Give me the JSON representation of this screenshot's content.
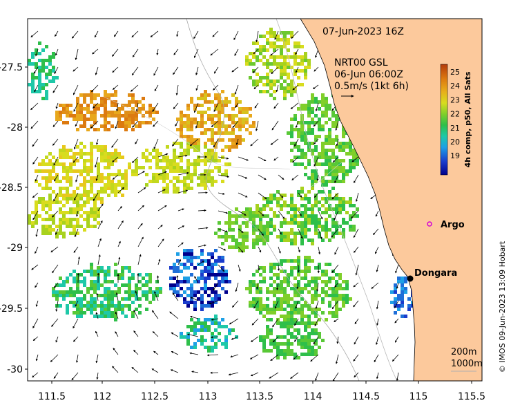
{
  "map": {
    "date_label": "07-Jun-2023 16Z",
    "current_source": {
      "line1": "NRT00 GSL",
      "line2": "06-Jun 06:00Z",
      "line3": "0.5m/s (1kt 6h)"
    },
    "x_ticks": [
      "111.5",
      "112",
      "112.5",
      "113",
      "113.5",
      "114",
      "114.5",
      "115",
      "115.5"
    ],
    "y_ticks": [
      "-27.5",
      "-28",
      "-28.5",
      "-29",
      "-29.5",
      "-30"
    ],
    "colorbar": {
      "title": "4h comp, p50, All Sats",
      "labels": [
        "25",
        "24",
        "23",
        "22",
        "21",
        "20",
        "19"
      ]
    },
    "places": [
      {
        "name": "Argo"
      },
      {
        "name": "Dongara"
      }
    ],
    "isobaths": [
      "200m",
      "1000m"
    ],
    "credit": "© IMOS 09-Jun-2023 13:09 Hobart",
    "colors": {
      "land": "#fcc99c",
      "ocean": "#ffffff",
      "argo": "#d400d4"
    }
  }
}
